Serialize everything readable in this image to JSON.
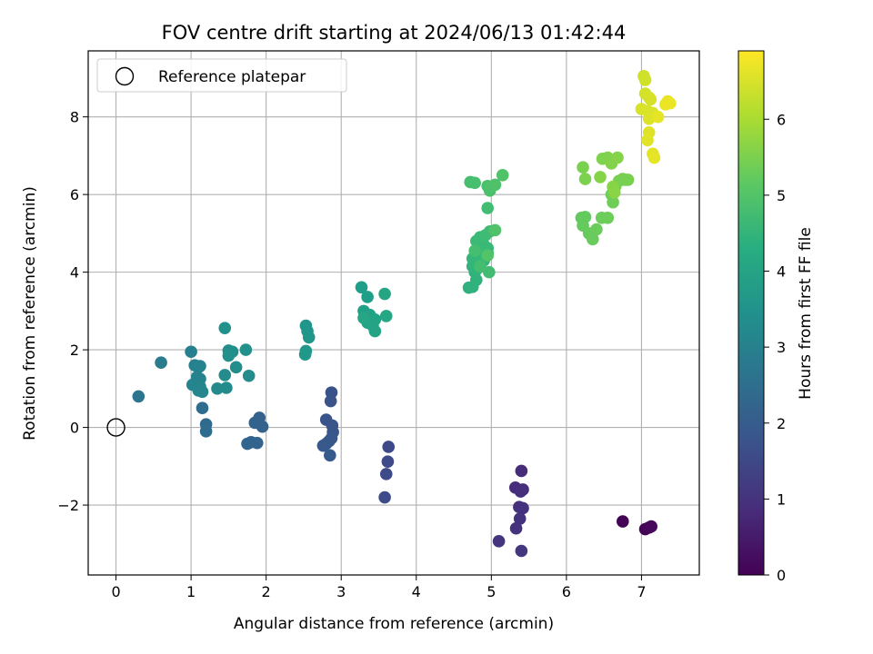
{
  "chart_data": {
    "type": "scatter",
    "title": "FOV centre drift starting at 2024/06/13 01:42:44",
    "xlabel": "Angular distance from reference (arcmin)",
    "ylabel": "Rotation from reference (arcmin)",
    "xlim": [
      -0.37,
      7.77
    ],
    "ylim": [
      -3.8,
      9.7
    ],
    "x_ticks": [
      0,
      1,
      2,
      3,
      4,
      5,
      6,
      7
    ],
    "y_ticks": [
      -2,
      0,
      2,
      4,
      6,
      8
    ],
    "grid": true,
    "legend": {
      "position": "top-left",
      "entries": [
        "Reference platepar"
      ]
    },
    "reference_point": {
      "x": 0,
      "y": 0,
      "label": "Reference platepar"
    },
    "colorbar": {
      "label": "Hours from first FF file",
      "colormap": "viridis",
      "range": [
        0,
        6.9
      ],
      "ticks": [
        0,
        1,
        2,
        3,
        4,
        5,
        6
      ]
    },
    "points": [
      [
        6.75,
        -2.42,
        0.05
      ],
      [
        7.05,
        -2.62,
        0.08
      ],
      [
        7.1,
        -2.58,
        0.11
      ],
      [
        7.13,
        -2.55,
        0.14
      ],
      [
        5.4,
        -1.12,
        0.85
      ],
      [
        5.32,
        -1.55,
        0.88
      ],
      [
        5.42,
        -1.6,
        0.9
      ],
      [
        5.39,
        -1.65,
        0.93
      ],
      [
        5.37,
        -2.05,
        0.96
      ],
      [
        5.42,
        -2.08,
        0.98
      ],
      [
        5.38,
        -2.35,
        1.0
      ],
      [
        5.33,
        -2.6,
        1.02
      ],
      [
        5.1,
        -2.93,
        1.05
      ],
      [
        5.4,
        -3.18,
        1.08
      ],
      [
        3.63,
        -0.5,
        1.5
      ],
      [
        3.62,
        -0.88,
        1.53
      ],
      [
        3.6,
        -1.2,
        1.55
      ],
      [
        3.58,
        -1.8,
        1.58
      ],
      [
        2.87,
        0.9,
        1.75
      ],
      [
        2.86,
        0.68,
        1.77
      ],
      [
        2.8,
        0.2,
        1.8
      ],
      [
        2.88,
        0.05,
        1.82
      ],
      [
        2.89,
        -0.12,
        1.84
      ],
      [
        2.87,
        -0.28,
        1.86
      ],
      [
        2.84,
        -0.35,
        1.88
      ],
      [
        2.8,
        -0.42,
        1.9
      ],
      [
        2.76,
        -0.47,
        1.92
      ],
      [
        2.85,
        -0.72,
        1.94
      ],
      [
        1.91,
        0.25,
        2.1
      ],
      [
        1.9,
        0.18,
        2.12
      ],
      [
        1.95,
        0.02,
        2.14
      ],
      [
        1.85,
        0.12,
        2.16
      ],
      [
        1.8,
        -0.38,
        2.18
      ],
      [
        1.88,
        -0.4,
        2.2
      ],
      [
        1.75,
        -0.42,
        2.22
      ],
      [
        1.2,
        0.08,
        2.4
      ],
      [
        1.2,
        -0.1,
        2.42
      ],
      [
        1.15,
        0.5,
        2.45
      ],
      [
        0.3,
        0.8,
        2.7
      ],
      [
        0.6,
        1.67,
        2.85
      ],
      [
        1.0,
        1.95,
        3.0
      ],
      [
        1.05,
        1.6,
        3.02
      ],
      [
        1.1,
        1.55,
        3.04
      ],
      [
        1.12,
        1.58,
        3.06
      ],
      [
        1.08,
        1.3,
        3.08
      ],
      [
        1.12,
        1.25,
        3.1
      ],
      [
        1.02,
        1.1,
        3.12
      ],
      [
        1.08,
        1.05,
        3.14
      ],
      [
        1.12,
        1.05,
        3.16
      ],
      [
        1.1,
        0.95,
        3.18
      ],
      [
        1.15,
        0.92,
        3.2
      ],
      [
        1.35,
        1.0,
        3.3
      ],
      [
        1.47,
        1.02,
        3.32
      ],
      [
        1.45,
        1.35,
        3.34
      ],
      [
        1.6,
        1.55,
        3.36
      ],
      [
        1.77,
        1.33,
        3.38
      ],
      [
        1.5,
        1.98,
        3.4
      ],
      [
        1.55,
        1.95,
        3.42
      ],
      [
        1.5,
        1.85,
        3.44
      ],
      [
        1.73,
        2.0,
        3.46
      ],
      [
        1.45,
        2.56,
        3.48
      ],
      [
        2.53,
        2.62,
        3.6
      ],
      [
        2.55,
        2.48,
        3.62
      ],
      [
        2.57,
        2.32,
        3.64
      ],
      [
        2.53,
        1.97,
        3.66
      ],
      [
        2.52,
        1.88,
        3.68
      ],
      [
        3.27,
        3.61,
        3.85
      ],
      [
        3.35,
        3.36,
        3.87
      ],
      [
        3.3,
        3.0,
        3.89
      ],
      [
        3.38,
        2.9,
        3.91
      ],
      [
        3.32,
        2.8,
        3.93
      ],
      [
        3.4,
        2.75,
        3.95
      ],
      [
        3.35,
        2.7,
        3.97
      ],
      [
        3.45,
        2.78,
        3.99
      ],
      [
        3.42,
        2.62,
        4.01
      ],
      [
        3.45,
        2.48,
        4.03
      ],
      [
        3.58,
        3.44,
        4.05
      ],
      [
        3.6,
        2.87,
        4.07
      ],
      [
        3.3,
        2.82,
        4.09
      ],
      [
        4.7,
        3.6,
        4.4
      ],
      [
        4.75,
        3.62,
        4.42
      ],
      [
        4.8,
        3.8,
        4.44
      ],
      [
        4.78,
        4.0,
        4.46
      ],
      [
        4.82,
        4.1,
        4.48
      ],
      [
        4.75,
        4.15,
        4.5
      ],
      [
        4.8,
        4.2,
        4.52
      ],
      [
        4.85,
        4.25,
        4.54
      ],
      [
        4.9,
        4.3,
        4.56
      ],
      [
        4.75,
        4.35,
        4.58
      ],
      [
        4.85,
        4.45,
        4.6
      ],
      [
        4.95,
        4.5,
        4.62
      ],
      [
        4.95,
        4.62,
        4.64
      ],
      [
        4.9,
        4.7,
        4.66
      ],
      [
        4.8,
        4.8,
        4.68
      ],
      [
        4.85,
        4.9,
        4.7
      ],
      [
        4.92,
        4.95,
        4.72
      ],
      [
        4.98,
        5.05,
        4.74
      ],
      [
        4.95,
        5.65,
        4.76
      ],
      [
        4.97,
        4.0,
        4.78
      ],
      [
        4.85,
        4.15,
        4.8
      ],
      [
        4.78,
        4.55,
        4.82
      ],
      [
        4.72,
        6.32,
        4.84
      ],
      [
        4.78,
        6.3,
        4.86
      ],
      [
        4.95,
        6.22,
        4.88
      ],
      [
        4.98,
        6.1,
        4.9
      ],
      [
        5.0,
        6.2,
        4.92
      ],
      [
        5.05,
        6.25,
        4.94
      ],
      [
        5.15,
        6.5,
        4.96
      ],
      [
        5.05,
        5.08,
        4.98
      ],
      [
        4.95,
        4.43,
        5.0
      ],
      [
        6.2,
        5.4,
        5.2
      ],
      [
        6.25,
        5.42,
        5.22
      ],
      [
        6.22,
        5.2,
        5.24
      ],
      [
        6.3,
        5.0,
        5.26
      ],
      [
        6.35,
        4.85,
        5.28
      ],
      [
        6.4,
        5.1,
        5.3
      ],
      [
        6.47,
        5.4,
        5.32
      ],
      [
        6.55,
        5.4,
        5.34
      ],
      [
        6.62,
        5.8,
        5.36
      ],
      [
        6.6,
        6.0,
        5.38
      ],
      [
        6.65,
        6.2,
        5.4
      ],
      [
        6.7,
        6.35,
        5.42
      ],
      [
        6.78,
        6.38,
        5.44
      ],
      [
        6.75,
        6.4,
        5.46
      ],
      [
        6.82,
        6.38,
        5.48
      ],
      [
        6.22,
        6.7,
        5.5
      ],
      [
        6.25,
        6.4,
        5.52
      ],
      [
        6.48,
        6.92,
        5.54
      ],
      [
        6.55,
        6.95,
        5.56
      ],
      [
        6.6,
        6.8,
        5.58
      ],
      [
        6.68,
        6.95,
        5.6
      ],
      [
        6.45,
        6.45,
        5.62
      ],
      [
        6.62,
        6.2,
        5.64
      ],
      [
        6.64,
        6.05,
        5.66
      ],
      [
        7.03,
        9.05,
        6.4
      ],
      [
        7.05,
        8.95,
        6.42
      ],
      [
        7.05,
        8.6,
        6.44
      ],
      [
        7.1,
        8.5,
        6.46
      ],
      [
        7.12,
        8.45,
        6.48
      ],
      [
        7.0,
        8.2,
        6.5
      ],
      [
        7.08,
        8.15,
        6.52
      ],
      [
        7.15,
        8.1,
        6.54
      ],
      [
        7.1,
        7.95,
        6.56
      ],
      [
        7.1,
        7.6,
        6.58
      ],
      [
        7.08,
        7.4,
        6.6
      ],
      [
        7.15,
        7.05,
        6.62
      ],
      [
        7.17,
        6.95,
        6.64
      ],
      [
        7.22,
        8.0,
        6.66
      ],
      [
        7.35,
        8.4,
        6.68
      ],
      [
        7.38,
        8.35,
        6.7
      ],
      [
        7.32,
        8.32,
        6.72
      ]
    ]
  }
}
